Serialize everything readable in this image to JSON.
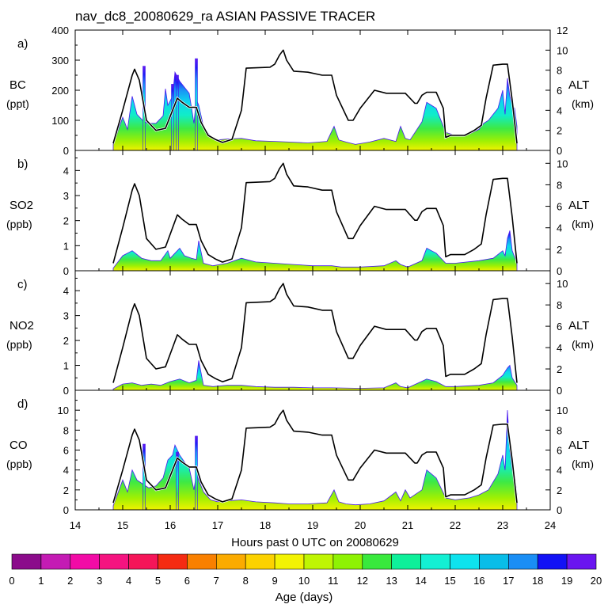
{
  "chart_data": {
    "type": "area",
    "title": "nav_dc8_20080629_ra ASIAN PASSIVE TRACER",
    "xlabel": "Hours past 0 UTC on 20080629",
    "xlim": [
      14,
      24
    ],
    "xticks": [
      "14",
      "15",
      "16",
      "17",
      "18",
      "19",
      "20",
      "21",
      "22",
      "23",
      "24"
    ],
    "altitude": {
      "name": "ALT",
      "unit": "(km)",
      "x": [
        14.8,
        15.0,
        15.2,
        15.25,
        15.35,
        15.5,
        15.7,
        15.9,
        16.05,
        16.15,
        16.25,
        16.4,
        16.55,
        16.65,
        16.8,
        16.95,
        17.1,
        17.3,
        17.5,
        17.6,
        18.1,
        18.2,
        18.3,
        18.38,
        18.45,
        18.6,
        18.9,
        19.2,
        19.4,
        19.5,
        19.75,
        19.85,
        20.0,
        20.3,
        20.55,
        20.7,
        20.95,
        21.15,
        21.2,
        21.3,
        21.4,
        21.6,
        21.75,
        21.8,
        21.9,
        22.2,
        22.4,
        22.55,
        22.65,
        22.8,
        23.0,
        23.1,
        23.2,
        23.3
      ],
      "y": [
        0.7,
        4.0,
        7.5,
        8.1,
        7.0,
        3.0,
        2.0,
        2.2,
        4.0,
        5.2,
        4.8,
        4.3,
        4.3,
        2.8,
        1.5,
        1.1,
        0.8,
        1.1,
        4.0,
        8.2,
        8.3,
        8.6,
        9.5,
        10.0,
        9.0,
        7.9,
        7.8,
        7.5,
        7.5,
        5.5,
        3.0,
        3.0,
        4.2,
        6.0,
        5.7,
        5.7,
        5.7,
        4.7,
        4.7,
        5.5,
        5.8,
        5.8,
        4.2,
        1.3,
        1.5,
        1.5,
        2.0,
        2.5,
        5.2,
        8.5,
        8.6,
        8.6,
        5.0,
        0.7
      ]
    },
    "age_colorbar": {
      "label": "Age (days)",
      "ticks": [
        "0",
        "1",
        "2",
        "3",
        "4",
        "5",
        "6",
        "7",
        "8",
        "9",
        "10",
        "11",
        "12",
        "13",
        "14",
        "15",
        "16",
        "17",
        "18",
        "19",
        "20"
      ],
      "colors": [
        "#8b0b8b",
        "#c41bb4",
        "#f20ba6",
        "#f51380",
        "#f51559",
        "#f52b12",
        "#f98000",
        "#fbab00",
        "#fcd200",
        "#f3f303",
        "#bff503",
        "#8ef203",
        "#39e93d",
        "#0ef09a",
        "#13f0d3",
        "#0ee3ee",
        "#09bde8",
        "#1a8ef5",
        "#1212f5",
        "#6a15f0"
      ]
    },
    "panels": [
      {
        "id": "a",
        "panel_label": "a)",
        "species": "BC",
        "unit": "(ppt)",
        "ylim": [
          0,
          400
        ],
        "yticks": [
          "0",
          "100",
          "200",
          "300",
          "400"
        ],
        "alt_ylim": [
          0,
          12
        ],
        "alt_ticks": [
          "0",
          "2",
          "4",
          "6",
          "8",
          "10",
          "12"
        ],
        "tracer_x": [
          14.8,
          15.0,
          15.1,
          15.2,
          15.3,
          15.45,
          15.55,
          15.7,
          15.85,
          15.9,
          15.95,
          16.05,
          16.1,
          16.2,
          16.3,
          16.4,
          16.5,
          16.55,
          16.6,
          16.7,
          16.85,
          17.0,
          17.2,
          17.5,
          17.8,
          18.2,
          18.5,
          18.9,
          19.3,
          19.45,
          19.55,
          19.7,
          19.9,
          20.2,
          20.5,
          20.75,
          20.85,
          20.95,
          21.05,
          21.3,
          21.4,
          21.5,
          21.6,
          21.8,
          22.0,
          22.3,
          22.5,
          22.6,
          22.7,
          22.9,
          23.0,
          23.05,
          23.1,
          23.15,
          23.2,
          23.25,
          23.3
        ],
        "tracer_y": [
          20,
          110,
          70,
          180,
          120,
          95,
          90,
          90,
          115,
          205,
          150,
          180,
          260,
          230,
          210,
          190,
          90,
          170,
          150,
          80,
          45,
          35,
          38,
          40,
          32,
          30,
          28,
          25,
          30,
          80,
          35,
          28,
          20,
          28,
          40,
          30,
          80,
          40,
          35,
          95,
          160,
          150,
          140,
          60,
          50,
          55,
          70,
          90,
          100,
          140,
          200,
          120,
          240,
          180,
          150,
          140,
          80
        ],
        "spikes": [
          {
            "x": 15.45,
            "y": 280
          },
          {
            "x": 16.05,
            "y": 220
          },
          {
            "x": 16.15,
            "y": 250
          },
          {
            "x": 16.55,
            "y": 305
          }
        ]
      },
      {
        "id": "b",
        "panel_label": "b)",
        "species": "SO2",
        "unit": "(ppb)",
        "ylim": [
          0,
          4.8
        ],
        "yticks": [
          "0",
          "1",
          "2",
          "3",
          "4"
        ],
        "alt_ylim": [
          0,
          11.2
        ],
        "alt_ticks": [
          "0",
          "2",
          "4",
          "6",
          "8",
          "10"
        ],
        "tracer_x": [
          14.8,
          15.0,
          15.2,
          15.4,
          15.6,
          15.8,
          15.95,
          16.0,
          16.1,
          16.2,
          16.3,
          16.45,
          16.55,
          16.6,
          16.7,
          16.9,
          17.2,
          17.5,
          17.8,
          18.2,
          18.6,
          19.0,
          19.4,
          19.6,
          20.0,
          20.5,
          20.75,
          20.85,
          21.0,
          21.3,
          21.4,
          21.5,
          21.6,
          21.8,
          22.0,
          22.5,
          22.8,
          23.0,
          23.05,
          23.1,
          23.15,
          23.2,
          23.3
        ],
        "tracer_y": [
          0.1,
          0.6,
          0.8,
          0.5,
          0.4,
          0.4,
          0.8,
          0.5,
          0.7,
          0.9,
          0.6,
          0.5,
          0.45,
          1.2,
          0.3,
          0.2,
          0.3,
          0.5,
          0.35,
          0.3,
          0.25,
          0.2,
          0.2,
          0.15,
          0.15,
          0.2,
          0.4,
          0.25,
          0.15,
          0.4,
          0.9,
          0.8,
          0.7,
          0.3,
          0.3,
          0.4,
          0.5,
          0.8,
          0.6,
          1.3,
          1.6,
          0.8,
          0.3
        ],
        "spikes": []
      },
      {
        "id": "c",
        "panel_label": "c)",
        "species": "NO2",
        "unit": "(ppb)",
        "ylim": [
          0,
          4.8
        ],
        "yticks": [
          "0",
          "1",
          "2",
          "3",
          "4"
        ],
        "alt_ylim": [
          0,
          11.2
        ],
        "alt_ticks": [
          "0",
          "2",
          "4",
          "6",
          "8",
          "10"
        ],
        "tracer_x": [
          14.8,
          15.0,
          15.2,
          15.4,
          15.6,
          15.8,
          16.0,
          16.1,
          16.2,
          16.4,
          16.55,
          16.6,
          16.7,
          16.9,
          17.2,
          17.5,
          17.8,
          18.2,
          18.6,
          19.0,
          19.4,
          20.0,
          20.5,
          20.75,
          20.85,
          21.0,
          21.4,
          21.5,
          21.6,
          21.8,
          22.0,
          22.5,
          22.8,
          23.0,
          23.1,
          23.15,
          23.2,
          23.3
        ],
        "tracer_y": [
          0.05,
          0.25,
          0.3,
          0.2,
          0.25,
          0.2,
          0.35,
          0.4,
          0.45,
          0.3,
          0.4,
          1.2,
          0.2,
          0.15,
          0.2,
          0.2,
          0.15,
          0.12,
          0.12,
          0.1,
          0.1,
          0.08,
          0.1,
          0.3,
          0.15,
          0.1,
          0.45,
          0.4,
          0.35,
          0.15,
          0.15,
          0.2,
          0.3,
          0.6,
          0.9,
          1.0,
          0.5,
          0.2
        ],
        "spikes": []
      },
      {
        "id": "d",
        "panel_label": "d)",
        "species": "CO",
        "unit": "(ppb)",
        "ylim": [
          0,
          12
        ],
        "yticks": [
          "0",
          "2",
          "4",
          "6",
          "8",
          "10"
        ],
        "alt_ylim": [
          0,
          12
        ],
        "alt_ticks": [
          "0",
          "2",
          "4",
          "6",
          "8",
          "10"
        ],
        "tracer_x": [
          14.8,
          15.0,
          15.1,
          15.2,
          15.3,
          15.45,
          15.55,
          15.7,
          15.85,
          15.95,
          16.05,
          16.1,
          16.2,
          16.3,
          16.4,
          16.5,
          16.55,
          16.6,
          16.7,
          16.85,
          17.0,
          17.2,
          17.5,
          17.8,
          18.2,
          18.5,
          18.9,
          19.3,
          19.45,
          19.55,
          19.7,
          19.9,
          20.2,
          20.5,
          20.75,
          20.85,
          20.95,
          21.05,
          21.3,
          21.4,
          21.5,
          21.6,
          21.8,
          22.0,
          22.3,
          22.5,
          22.7,
          22.9,
          23.0,
          23.05,
          23.1,
          23.15,
          23.2,
          23.25,
          23.3
        ],
        "tracer_y": [
          0.4,
          3.0,
          1.8,
          4.0,
          3.0,
          2.5,
          2.2,
          2.4,
          3.2,
          5.0,
          5.5,
          6.5,
          5.5,
          4.8,
          4.2,
          2.0,
          3.6,
          3.0,
          1.8,
          1.0,
          0.8,
          0.9,
          1.0,
          0.8,
          0.7,
          0.6,
          0.6,
          0.7,
          2.0,
          0.8,
          0.6,
          0.5,
          0.6,
          0.9,
          1.8,
          0.9,
          2.0,
          1.2,
          2.0,
          4.0,
          3.6,
          3.2,
          1.2,
          1.0,
          1.2,
          1.5,
          2.0,
          3.6,
          5.5,
          4.0,
          10.0,
          6.0,
          4.0,
          3.5,
          1.5
        ],
        "spikes": [
          {
            "x": 15.45,
            "y": 6.6
          },
          {
            "x": 16.15,
            "y": 5.8
          },
          {
            "x": 16.55,
            "y": 7.4
          }
        ]
      }
    ]
  }
}
